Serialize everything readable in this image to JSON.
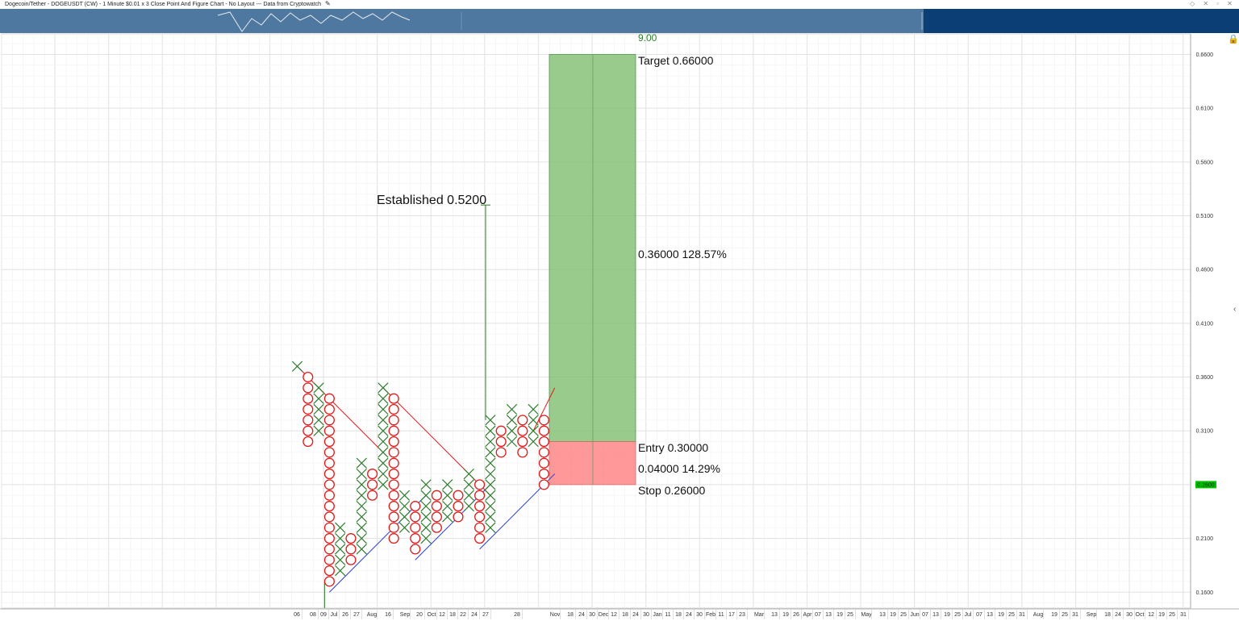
{
  "header": {
    "title": "Dogecoin/Tether - DOGEUSDT (CW) - 1 Minute $0.01 x 3 Close Point And Figure Chart - No Layout --- Data from Cryptowatch",
    "edit_icon": "pencil-icon",
    "window_controls": "◇ ✕ ▫ ✕"
  },
  "colors": {
    "x_color": "#2f7d2f",
    "o_color": "#e01b1b",
    "target_zone": "#7fbf6f",
    "stop_zone": "#ff7f7f",
    "resistance_line": "#e01b1b",
    "support_line": "#2a3fd4",
    "price_badge": "#00c000"
  },
  "annotations": {
    "count_label": "9.00",
    "target_label": "Target  0.66000",
    "gain_label": "0.36000   128.57%",
    "entry_label": "Entry   0.30000",
    "risk_label": "0.04000   14.29%",
    "stop_label": "Stop   0.26000",
    "established_label": "Established 0.5200"
  },
  "chart_data": {
    "type": "point-and-figure",
    "box_size": 0.01,
    "reversal": 3,
    "y_axis": {
      "ticks": [
        "0.6600",
        "0.6100",
        "0.5600",
        "0.5100",
        "0.4600",
        "0.4100",
        "0.3600",
        "0.3100",
        "0.2600",
        "0.2100",
        "0.1600"
      ],
      "range": [
        0.15,
        0.67
      ]
    },
    "current_price_label": "0.2600",
    "x_axis_labels": [
      "06",
      "08",
      "09",
      "Jul",
      "26",
      "27",
      "Aug",
      "16",
      "Sep",
      "20",
      "Oct",
      "12",
      "18",
      "22",
      "24",
      "27",
      "28",
      "Nov",
      "18",
      "24",
      "30",
      "Dec",
      "12",
      "18",
      "24",
      "30",
      "Jan",
      "11",
      "18",
      "24",
      "30",
      "Feb",
      "11",
      "17",
      "23",
      "Mar",
      "13",
      "19",
      "26",
      "Apr",
      "07",
      "13",
      "19",
      "25",
      "May",
      "13",
      "19",
      "25",
      "Jun",
      "07",
      "13",
      "19",
      "25",
      "Jul",
      "07",
      "13",
      "19",
      "25",
      "31",
      "Aug",
      "19",
      "25",
      "31",
      "Sep",
      "18",
      "24",
      "30",
      "Oct",
      "12",
      "19",
      "25",
      "31"
    ],
    "columns": [
      {
        "type": "X",
        "low": 0.37,
        "high": 0.37
      },
      {
        "type": "O",
        "low": 0.3,
        "high": 0.36
      },
      {
        "type": "X",
        "low": 0.31,
        "high": 0.35
      },
      {
        "type": "O",
        "low": 0.17,
        "high": 0.34
      },
      {
        "type": "X",
        "low": 0.18,
        "high": 0.22
      },
      {
        "type": "O",
        "low": 0.19,
        "high": 0.21
      },
      {
        "type": "X",
        "low": 0.2,
        "high": 0.28
      },
      {
        "type": "O",
        "low": 0.25,
        "high": 0.27
      },
      {
        "type": "X",
        "low": 0.26,
        "high": 0.35
      },
      {
        "type": "O",
        "low": 0.21,
        "high": 0.34
      },
      {
        "type": "X",
        "low": 0.22,
        "high": 0.25
      },
      {
        "type": "O",
        "low": 0.2,
        "high": 0.24
      },
      {
        "type": "X",
        "low": 0.21,
        "high": 0.26
      },
      {
        "type": "O",
        "low": 0.22,
        "high": 0.25
      },
      {
        "type": "X",
        "low": 0.23,
        "high": 0.26
      },
      {
        "type": "O",
        "low": 0.23,
        "high": 0.25
      },
      {
        "type": "X",
        "low": 0.24,
        "high": 0.27
      },
      {
        "type": "O",
        "low": 0.21,
        "high": 0.26
      },
      {
        "type": "X",
        "low": 0.22,
        "high": 0.32
      },
      {
        "type": "O",
        "low": 0.29,
        "high": 0.31
      },
      {
        "type": "X",
        "low": 0.3,
        "high": 0.33
      },
      {
        "type": "O",
        "low": 0.29,
        "high": 0.32
      },
      {
        "type": "X",
        "low": 0.3,
        "high": 0.33
      },
      {
        "type": "O",
        "low": 0.26,
        "high": 0.32
      }
    ],
    "trade": {
      "entry": 0.3,
      "target": 0.66,
      "stop": 0.26,
      "established": 0.52
    },
    "trendlines": [
      {
        "kind": "resistance",
        "from": {
          "col": 0,
          "price": 0.37
        },
        "to": {
          "col": 8,
          "price": 0.29
        }
      },
      {
        "kind": "resistance",
        "from": {
          "col": 8,
          "price": 0.35
        },
        "to": {
          "col": 18,
          "price": 0.25
        }
      },
      {
        "kind": "resistance",
        "from": {
          "col": 22,
          "price": 0.31
        },
        "to": {
          "col": 24,
          "price": 0.35
        }
      },
      {
        "kind": "support",
        "from": {
          "col": 3,
          "price": 0.16
        },
        "to": {
          "col": 12,
          "price": 0.25
        }
      },
      {
        "kind": "support",
        "from": {
          "col": 11,
          "price": 0.19
        },
        "to": {
          "col": 18,
          "price": 0.26
        }
      },
      {
        "kind": "support",
        "from": {
          "col": 17,
          "price": 0.2
        },
        "to": {
          "col": 24,
          "price": 0.27
        }
      }
    ],
    "grid": true
  }
}
